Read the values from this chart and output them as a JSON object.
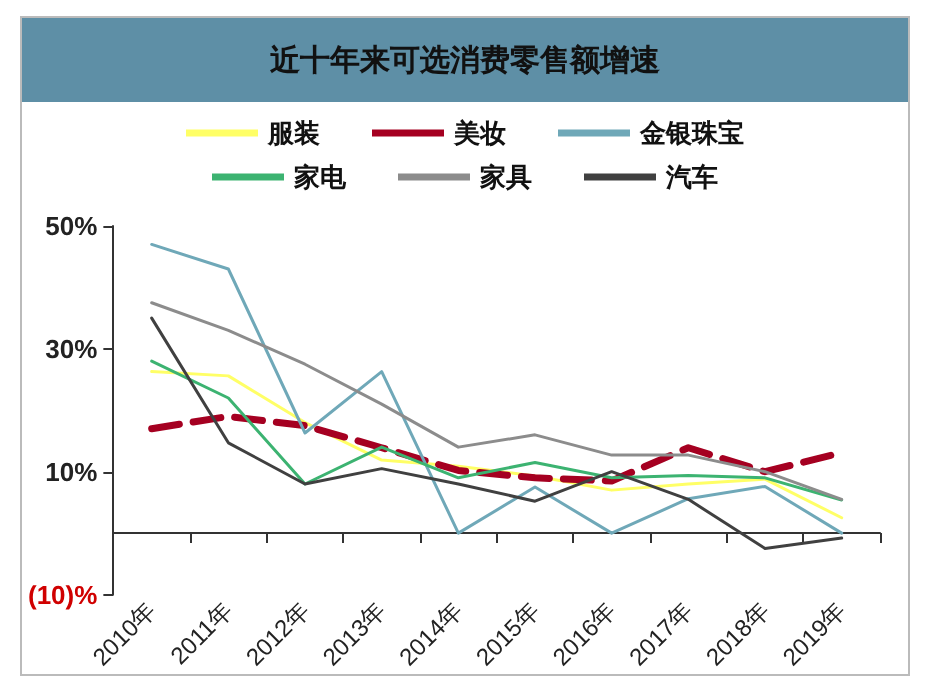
{
  "chart_data": {
    "type": "line",
    "title": "近十年来可选消费零售额增速",
    "categories": [
      "2010年",
      "2011年",
      "2012年",
      "2013年",
      "2014年",
      "2015年",
      "2016年",
      "2017年",
      "2018年",
      "2019年"
    ],
    "series": [
      {
        "name": "服装",
        "color": "#ffff66",
        "values": [
          26.3,
          25.6,
          18,
          11.9,
          10.9,
          9.3,
          7,
          8,
          8.8,
          2.5
        ]
      },
      {
        "name": "美妆",
        "color": "#a50021",
        "line_style": "dashed",
        "values": [
          17,
          19,
          17.5,
          13.9,
          10.2,
          9,
          8.5,
          13.9,
          10,
          13.1
        ]
      },
      {
        "name": "金银珠宝",
        "color": "#6fa8b8",
        "values": [
          47,
          43,
          16.3,
          26.3,
          0,
          7.5,
          0,
          5.6,
          7.6,
          0
        ]
      },
      {
        "name": "家电",
        "color": "#3cb371",
        "values": [
          28,
          22,
          8,
          14,
          9,
          11.5,
          9,
          9.4,
          9,
          5.4
        ]
      },
      {
        "name": "家具",
        "color": "#8c8c8c",
        "values": [
          37.5,
          33,
          27.5,
          21,
          14,
          16,
          12.7,
          12.7,
          10,
          5.5
        ]
      },
      {
        "name": "汽车",
        "color": "#404040",
        "values": [
          35,
          14.7,
          8,
          10.5,
          8,
          5.2,
          10,
          5.5,
          -2.5,
          -0.8
        ]
      }
    ],
    "ylim": [
      -10,
      50
    ],
    "yticks": [
      {
        "value": -10,
        "label": "(10)%"
      },
      {
        "value": 10,
        "label": "10%"
      },
      {
        "value": 30,
        "label": "30%"
      },
      {
        "value": 50,
        "label": "50%"
      }
    ],
    "grid": false,
    "legend": "top",
    "marker": "none",
    "line_style": "solid"
  }
}
